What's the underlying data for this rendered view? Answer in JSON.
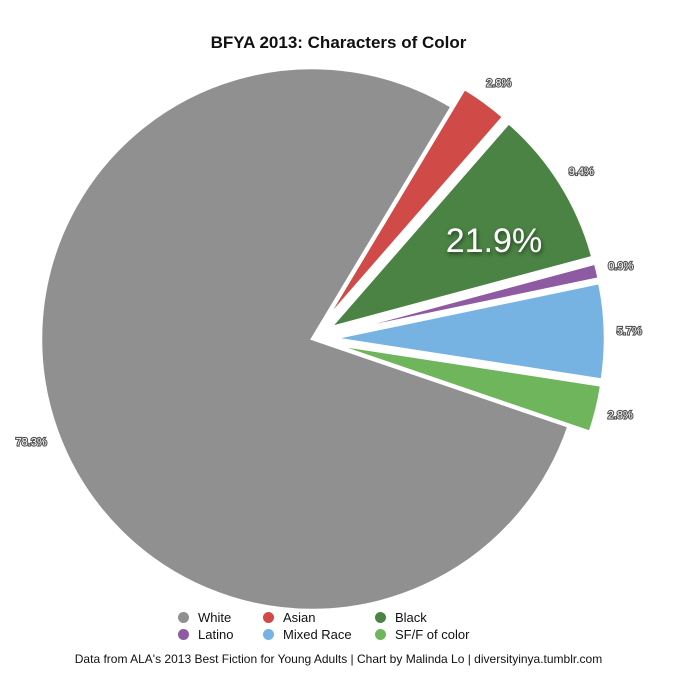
{
  "chart_data": {
    "type": "pie",
    "title": "BFYA 2013: Characters of Color",
    "slices": [
      {
        "label": "White",
        "value": 78.3,
        "value_label": "78.3%",
        "color": "#909090",
        "exploded": false
      },
      {
        "label": "Asian",
        "value": 2.8,
        "value_label": "2.8%",
        "color": "#d04a47",
        "exploded": true
      },
      {
        "label": "Black",
        "value": 9.4,
        "value_label": "9.4%",
        "color": "#4a8343",
        "exploded": true
      },
      {
        "label": "Latino",
        "value": 0.9,
        "value_label": "0.9%",
        "color": "#8e5aa2",
        "exploded": true
      },
      {
        "label": "Mixed Race",
        "value": 5.7,
        "value_label": "5.7%",
        "color": "#77b3e2",
        "exploded": true
      },
      {
        "label": "SF/F of color",
        "value": 2.8,
        "value_label": "2.8%",
        "color": "#6fb55c",
        "exploded": true
      }
    ],
    "annotation": "21.9%",
    "legend_position": "bottom"
  },
  "footer": "Data from ALA's 2013 Best Fiction for Young Adults | Chart by Malinda Lo | diversityinya.tumblr.com"
}
